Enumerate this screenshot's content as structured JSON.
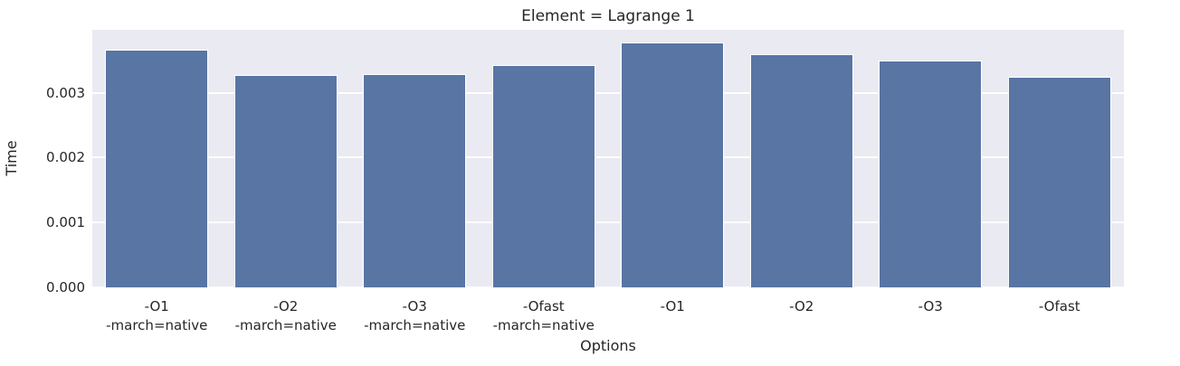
{
  "chart_data": {
    "type": "bar",
    "title": "Element = Lagrange 1",
    "xlabel": "Options",
    "ylabel": "Time",
    "categories": [
      "-O1\n-march=native",
      "-O2\n-march=native",
      "-O3\n-march=native",
      "-Ofast\n-march=native",
      "-O1",
      "-O2",
      "-O3",
      "-Ofast"
    ],
    "values": [
      0.00366,
      0.00327,
      0.00329,
      0.00342,
      0.00378,
      0.00359,
      0.0035,
      0.00325
    ],
    "yticks": [
      0,
      0.001,
      0.002,
      0.003
    ],
    "ytick_labels": [
      "0.000",
      "0.001",
      "0.002",
      "0.003"
    ],
    "ylim": [
      0,
      0.00397
    ],
    "grid": "horizontal-only",
    "legend_position": "none",
    "bar_width_ratio": 0.8,
    "colors": {
      "bar": "#5875a4",
      "plot_background": "#eaeaf2",
      "grid_line": "#ffffff",
      "text": "#262626",
      "figure_background": "#ffffff"
    }
  }
}
